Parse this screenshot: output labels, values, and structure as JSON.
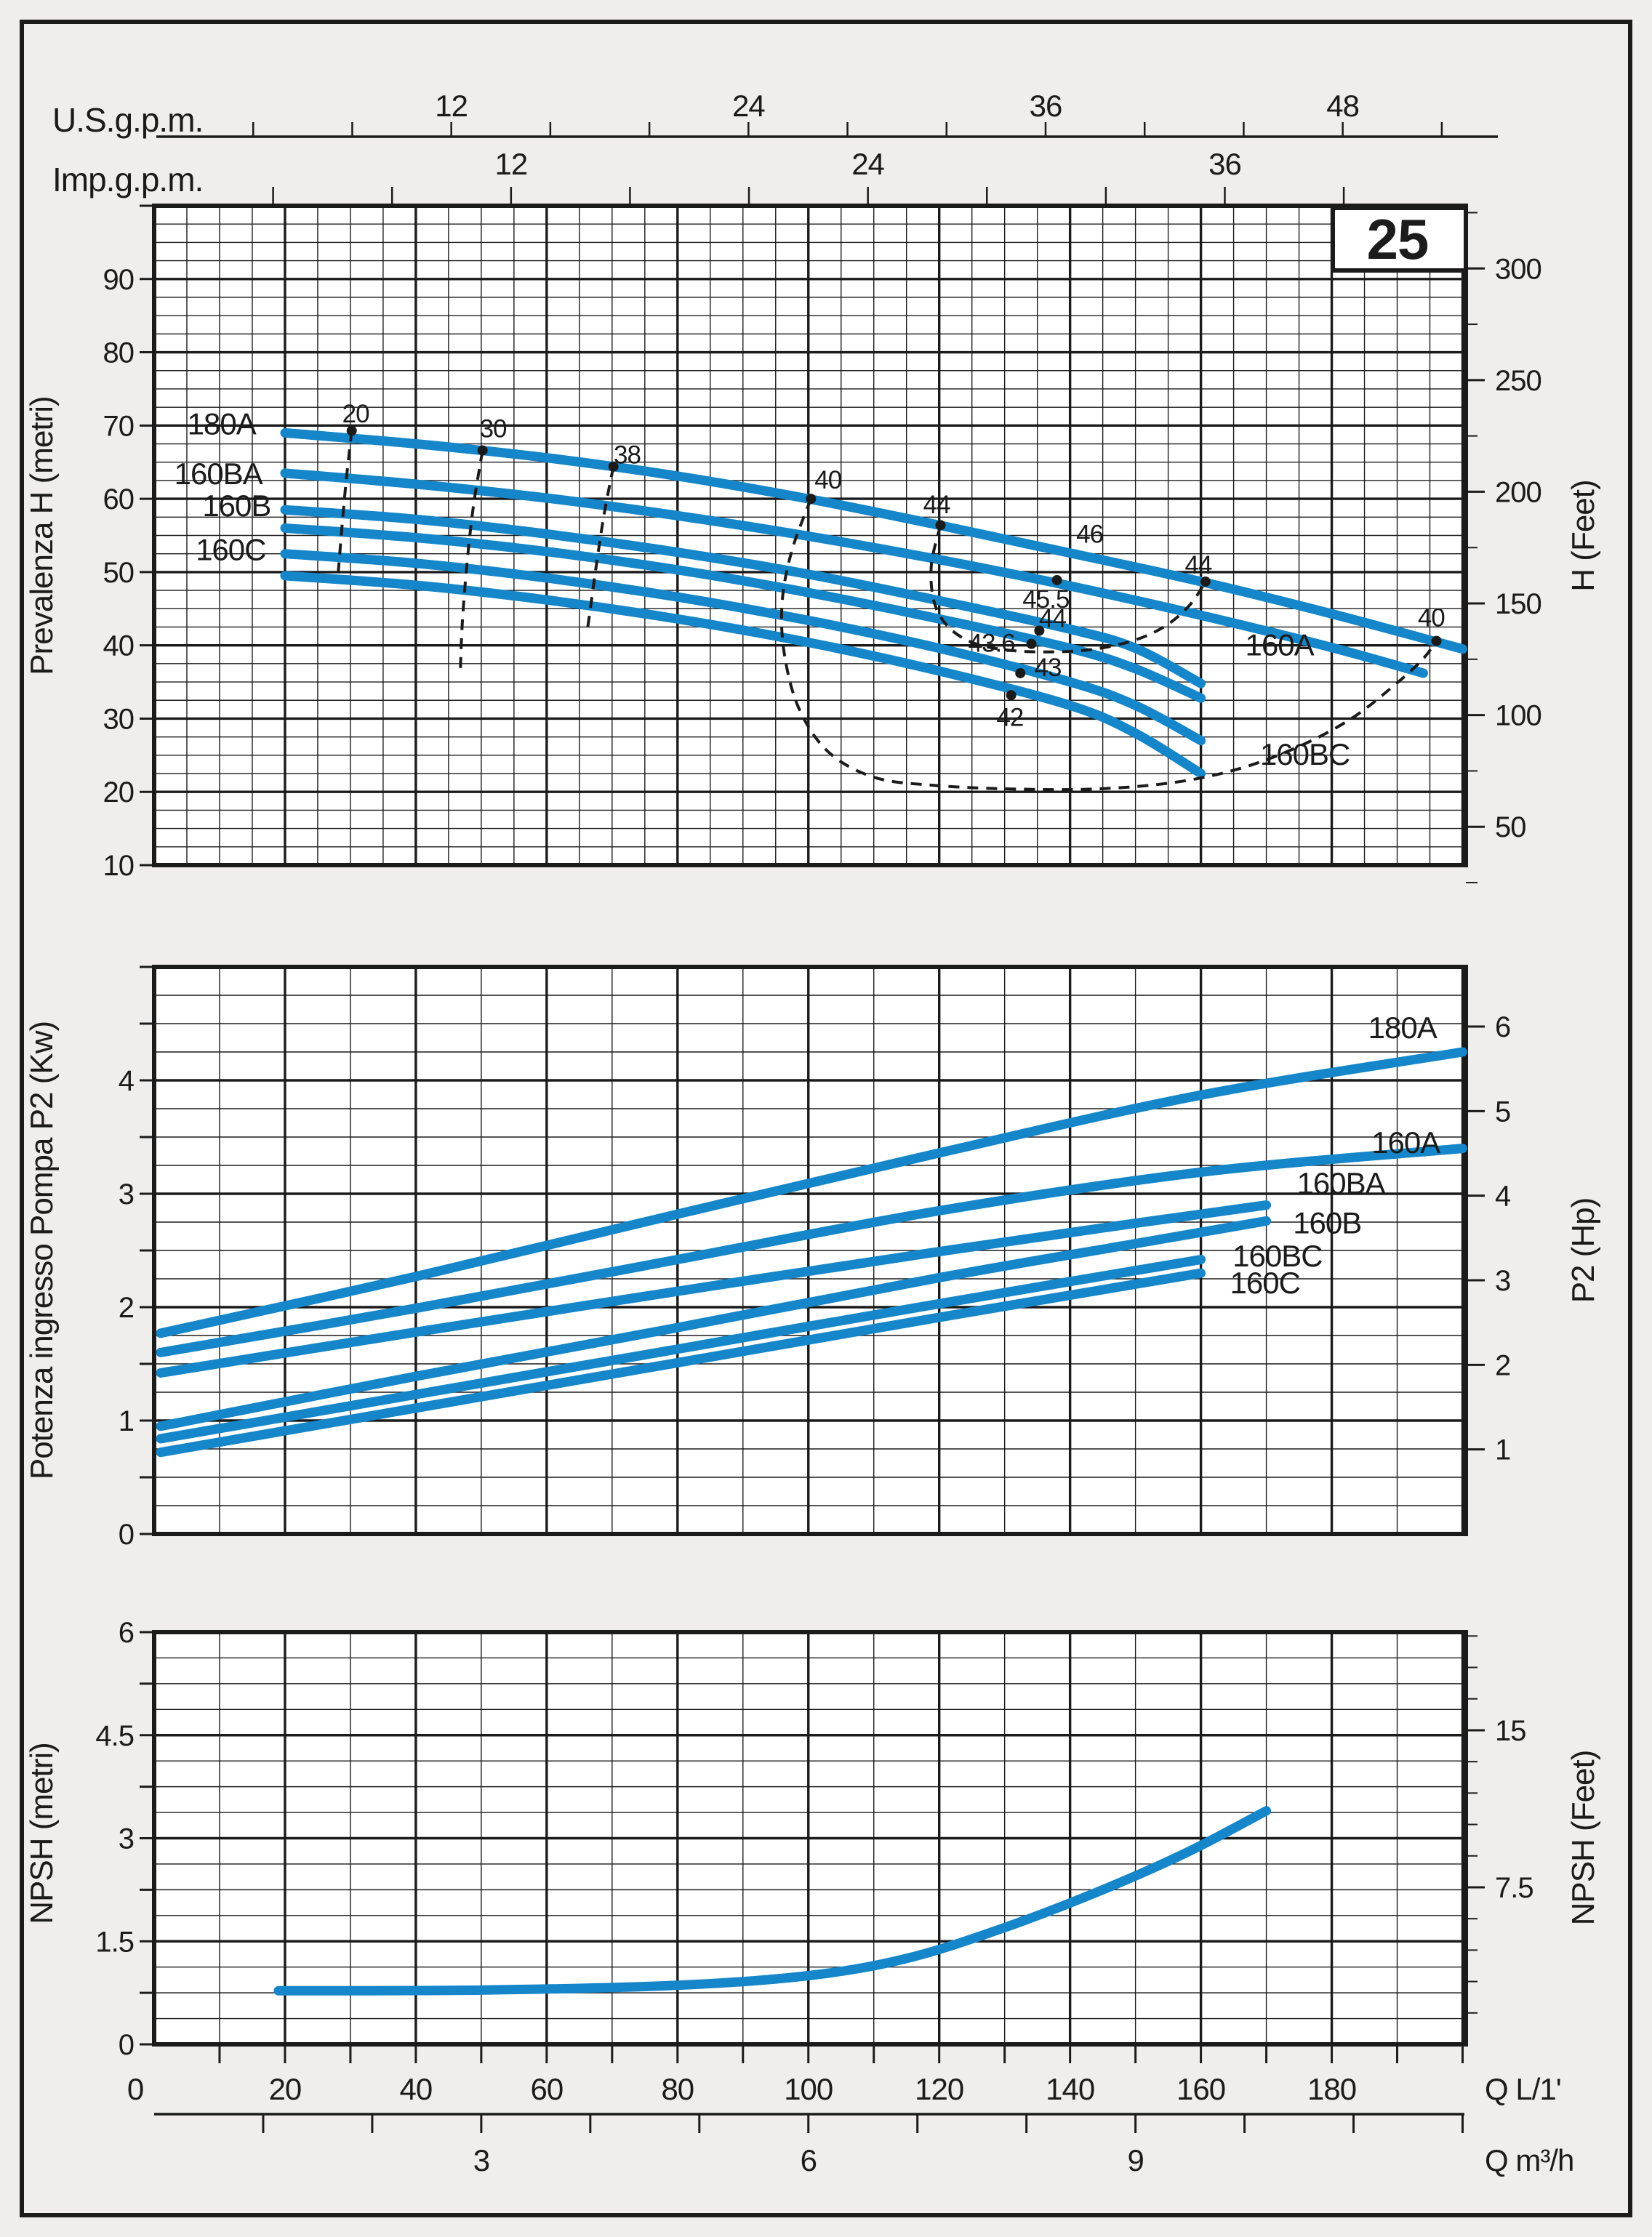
{
  "page": {
    "bg": "#efeeec",
    "plot_bg": "#ffffff",
    "ink": "#1b1b1b",
    "accent": "#1486c9",
    "frame_label": "25"
  },
  "top_axes": {
    "us": {
      "label": "U.S.g.p.m.",
      "tick_step": 4,
      "tick_max": 52,
      "labeled": [
        12,
        24,
        36,
        48
      ]
    },
    "imp": {
      "label": "Imp.g.p.m.",
      "tick_step": 4,
      "tick_max": 40,
      "labeled": [
        12,
        24,
        36
      ]
    }
  },
  "bottom_axes": {
    "lpm": {
      "label": "Q L/1'",
      "labeled": [
        0,
        20,
        40,
        60,
        80,
        100,
        120,
        140,
        160,
        180
      ],
      "tick_step": 10,
      "tick_max": 200
    },
    "m3h": {
      "label": "Q m³/h",
      "labeled": [
        3,
        6,
        9
      ],
      "tick_step": 1,
      "tick_max": 12
    }
  },
  "chart_data": [
    {
      "name": "head-vs-flow",
      "type": "line",
      "ylabel_left": "Prevalenza H (metri)",
      "ylabel_right": "H (Feet)",
      "xlabel": "Q L/1'",
      "xlim": [
        0,
        200.5
      ],
      "ylim": [
        10,
        100
      ],
      "grid": {
        "x_major": 20,
        "x_minor": 5,
        "y_major": 10,
        "y_minor": 2.5
      },
      "yticks_left": {
        "labels": [
          90,
          80,
          70,
          60,
          50,
          40,
          30,
          20,
          10
        ],
        "tick_step": 10
      },
      "yticks_right": {
        "labels": [
          50,
          100,
          150,
          200,
          250,
          300
        ],
        "minor_step": 25,
        "max": 325
      },
      "series": [
        {
          "name": "180A",
          "points": [
            [
              20,
              69
            ],
            [
              40,
              67.5
            ],
            [
              60,
              65.6
            ],
            [
              80,
              63.1
            ],
            [
              100,
              60
            ],
            [
              120,
              56.4
            ],
            [
              140,
              52.6
            ],
            [
              160,
              48.7
            ],
            [
              180,
              44.3
            ],
            [
              200,
              39.5
            ]
          ]
        },
        {
          "name": "160A",
          "points": [
            [
              20,
              63.5
            ],
            [
              40,
              62
            ],
            [
              60,
              60.1
            ],
            [
              80,
              57.7
            ],
            [
              100,
              54.9
            ],
            [
              120,
              51.7
            ],
            [
              140,
              48.1
            ],
            [
              160,
              44.1
            ],
            [
              180,
              39.7
            ],
            [
              194,
              36.2
            ]
          ]
        },
        {
          "name": "160BA",
          "points": [
            [
              20,
              58.5
            ],
            [
              40,
              57.2
            ],
            [
              60,
              55.2
            ],
            [
              80,
              52.7
            ],
            [
              100,
              49.7
            ],
            [
              120,
              46.1
            ],
            [
              140,
              42.2
            ],
            [
              150,
              39.6
            ],
            [
              160,
              34.8
            ]
          ]
        },
        {
          "name": "160B",
          "points": [
            [
              20,
              56
            ],
            [
              40,
              54.7
            ],
            [
              60,
              52.8
            ],
            [
              80,
              50.3
            ],
            [
              100,
              47.2
            ],
            [
              120,
              43.6
            ],
            [
              140,
              39.6
            ],
            [
              150,
              36.8
            ],
            [
              160,
              32.8
            ]
          ]
        },
        {
          "name": "160BC",
          "points": [
            [
              20,
              52.5
            ],
            [
              40,
              51.2
            ],
            [
              60,
              49.2
            ],
            [
              80,
              46.6
            ],
            [
              100,
              43.4
            ],
            [
              120,
              39.6
            ],
            [
              140,
              35
            ],
            [
              150,
              31.8
            ],
            [
              160,
              27
            ]
          ]
        },
        {
          "name": "160C",
          "points": [
            [
              20,
              49.5
            ],
            [
              40,
              48.2
            ],
            [
              60,
              46.2
            ],
            [
              80,
              43.6
            ],
            [
              100,
              40.4
            ],
            [
              120,
              36.5
            ],
            [
              140,
              31.8
            ],
            [
              150,
              28
            ],
            [
              160,
              22.5
            ]
          ]
        }
      ],
      "series_labels": [
        {
          "text": "180A",
          "q": 10.3,
          "v": 70.2
        },
        {
          "text": "160BA",
          "q": 9.8,
          "v": 63.4
        },
        {
          "text": "160B",
          "q": 12.6,
          "v": 59.0
        },
        {
          "text": "160C",
          "q": 11.7,
          "v": 53.0
        },
        {
          "text": "160A",
          "q": 172.0,
          "v": 40.0
        },
        {
          "text": "160BC",
          "q": 175.9,
          "v": 25.1
        }
      ],
      "efficiency_lines": [
        {
          "label": "20",
          "label_at": [
            30.8,
            71.6
          ],
          "dots": [
            [
              30.2,
              69.3
            ]
          ],
          "path": [
            [
              30.2,
              69.3
            ],
            [
              29.3,
              62
            ],
            [
              28.6,
              55
            ],
            [
              28.1,
              49.5
            ]
          ]
        },
        {
          "label": "30",
          "label_at": [
            51.8,
            69.6
          ],
          "dots": [
            [
              50.2,
              66.6
            ]
          ],
          "path": [
            [
              50.2,
              66.6
            ],
            [
              48.8,
              59
            ],
            [
              47.8,
              51
            ],
            [
              47.1,
              43
            ],
            [
              46.8,
              36.5
            ]
          ]
        },
        {
          "label": "38",
          "label_at": [
            72.3,
            66.0
          ],
          "dots": [
            [
              70.2,
              64.4
            ]
          ],
          "path": [
            [
              70.2,
              64.4
            ],
            [
              68.8,
              58
            ],
            [
              67.6,
              51
            ],
            [
              66.6,
              44.5
            ],
            [
              66.2,
              42
            ]
          ]
        },
        {
          "label": "40",
          "label_at": [
            103,
            62.6
          ],
          "label2": "40",
          "label2_at": [
            195.2,
            43.8
          ],
          "dots": [
            [
              100.4,
              60
            ],
            [
              196,
              40.6
            ]
          ],
          "path": [
            [
              100.4,
              60
            ],
            [
              97.5,
              53
            ],
            [
              96,
              46
            ],
            [
              96.3,
              39
            ],
            [
              98.5,
              31.5
            ],
            [
              103,
              25.5
            ],
            [
              110,
              22
            ],
            [
              119,
              20.9
            ],
            [
              131,
              20.4
            ],
            [
              144,
              20.4
            ],
            [
              156,
              21.3
            ],
            [
              166,
              23.2
            ],
            [
              175,
              26.2
            ],
            [
              183,
              30
            ],
            [
              189.5,
              34.5
            ],
            [
              193.8,
              38
            ],
            [
              196,
              40.6
            ]
          ]
        },
        {
          "label": "44",
          "label_at": [
            119.6,
            59.2
          ],
          "label2": "44",
          "label2_at": [
            159.6,
            51.0
          ],
          "dots": [
            [
              120.2,
              56.4
            ],
            [
              160.7,
              48.7
            ]
          ],
          "path": [
            [
              120.2,
              56.4
            ],
            [
              118.8,
              51
            ],
            [
              119.2,
              46
            ],
            [
              121.3,
              42.6
            ],
            [
              125,
              40.4
            ],
            [
              130,
              39.4
            ],
            [
              136,
              39.1
            ],
            [
              143,
              39.4
            ],
            [
              149.5,
              40.6
            ],
            [
              154.5,
              42.6
            ],
            [
              158.3,
              45.5
            ],
            [
              160.7,
              48.7
            ]
          ]
        },
        {
          "label": "46",
          "label_at": [
            143,
            55.2
          ],
          "dots": [],
          "path": []
        }
      ],
      "bep_dots": [
        {
          "label": "45.5",
          "at": [
            138,
            48.9
          ],
          "label_at": [
            136.3,
            46.3
          ]
        },
        {
          "label": "44",
          "at": [
            135.3,
            42.0
          ],
          "label_at": [
            137.3,
            43.7
          ]
        },
        {
          "label": "43.6",
          "at": [
            134.1,
            40.2
          ],
          "label_at": [
            128.0,
            40.3
          ]
        },
        {
          "label": "43",
          "at": [
            132.4,
            36.2
          ],
          "label_at": [
            136.6,
            37.0
          ]
        },
        {
          "label": "42",
          "at": [
            131.0,
            33.2
          ],
          "label_at": [
            130.8,
            30.2
          ]
        }
      ]
    },
    {
      "name": "power-vs-flow",
      "type": "line",
      "ylabel_left": "Potenza ingresso Pompa P2 (Kw)",
      "ylabel_right": "P2 (Hp)",
      "xlabel": "Q L/1'",
      "xlim": [
        0,
        200.5
      ],
      "ylim": [
        0,
        5
      ],
      "grid": {
        "x_major": 20,
        "x_minor": 10,
        "y_major": 1,
        "y_minor": 0.25
      },
      "yticks_left": {
        "labels": [
          4,
          3,
          2,
          1,
          0
        ],
        "tick_step": 0.5
      },
      "yticks_right": {
        "labels": [
          6,
          5,
          4,
          3,
          2,
          1
        ],
        "minor_step": 1,
        "max": 6
      },
      "series": [
        {
          "name": "180A",
          "points": [
            [
              1,
              1.77
            ],
            [
              40,
              2.27
            ],
            [
              80,
              2.82
            ],
            [
              120,
              3.36
            ],
            [
              160,
              3.87
            ],
            [
              200,
              4.25
            ]
          ]
        },
        {
          "name": "160A",
          "points": [
            [
              1,
              1.6
            ],
            [
              40,
              1.99
            ],
            [
              80,
              2.42
            ],
            [
              120,
              2.85
            ],
            [
              160,
              3.19
            ],
            [
              200,
              3.4
            ]
          ]
        },
        {
          "name": "160BA",
          "points": [
            [
              1,
              1.42
            ],
            [
              40,
              1.78
            ],
            [
              80,
              2.14
            ],
            [
              120,
              2.49
            ],
            [
              150,
              2.74
            ],
            [
              170,
              2.9
            ]
          ]
        },
        {
          "name": "160B",
          "points": [
            [
              1,
              0.95
            ],
            [
              40,
              1.39
            ],
            [
              80,
              1.82
            ],
            [
              120,
              2.26
            ],
            [
              150,
              2.56
            ],
            [
              170,
              2.76
            ]
          ]
        },
        {
          "name": "160BC",
          "points": [
            [
              1,
              0.84
            ],
            [
              40,
              1.23
            ],
            [
              80,
              1.63
            ],
            [
              120,
              2.03
            ],
            [
              160,
              2.42
            ]
          ]
        },
        {
          "name": "160C",
          "points": [
            [
              1,
              0.72
            ],
            [
              40,
              1.11
            ],
            [
              80,
              1.51
            ],
            [
              120,
              1.91
            ],
            [
              160,
              2.3
            ]
          ]
        }
      ],
      "series_labels": [
        {
          "text": "180A",
          "q": 190.8,
          "v": 4.46
        },
        {
          "text": "160A",
          "q": 191.3,
          "v": 3.45
        },
        {
          "text": "160BA",
          "q": 181.4,
          "v": 3.09
        },
        {
          "text": "160B",
          "q": 179.3,
          "v": 2.74
        },
        {
          "text": "160BC",
          "q": 171.7,
          "v": 2.45
        },
        {
          "text": "160C",
          "q": 169.8,
          "v": 2.21
        }
      ],
      "efficiency_lines": [],
      "bep_dots": []
    },
    {
      "name": "npsh-vs-flow",
      "type": "line",
      "ylabel_left": "NPSH (metri)",
      "ylabel_right": "NPSH (Feet)",
      "xlabel": "Q L/1'",
      "xlim": [
        0,
        200.5
      ],
      "ylim": [
        0,
        6
      ],
      "grid": {
        "x_major": 20,
        "x_minor": 10,
        "y_major": 1.5,
        "y_minor": 0.375
      },
      "yticks_left": {
        "labels": [
          6,
          4.5,
          3,
          1.5,
          0
        ],
        "tick_step": 0.75
      },
      "yticks_right": {
        "labels": [
          15,
          7.5
        ],
        "minor_step": 1.5,
        "max": 19.5
      },
      "series": [
        {
          "name": "NPSH",
          "points": [
            [
              19,
              0.78
            ],
            [
              50,
              0.79
            ],
            [
              80,
              0.86
            ],
            [
              100,
              1.0
            ],
            [
              115,
              1.25
            ],
            [
              130,
              1.7
            ],
            [
              145,
              2.25
            ],
            [
              158,
              2.8
            ],
            [
              170,
              3.4
            ]
          ]
        }
      ],
      "series_labels": [],
      "efficiency_lines": [],
      "bep_dots": []
    }
  ]
}
